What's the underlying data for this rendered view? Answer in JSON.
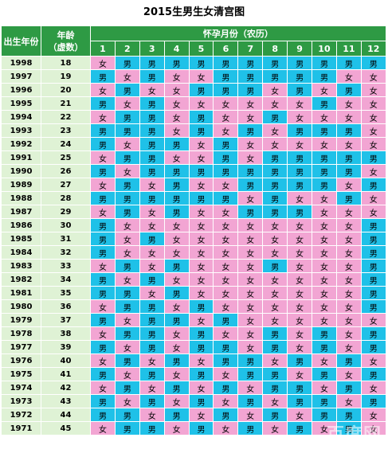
{
  "title": "2015生男生女清宫图",
  "headers": {
    "birth_year": "出生年份",
    "age_line1": "年龄",
    "age_line2": "（虚数）",
    "months_title": "怀孕月份（农历）",
    "months": [
      "1",
      "2",
      "3",
      "4",
      "5",
      "6",
      "7",
      "8",
      "9",
      "10",
      "11",
      "12"
    ]
  },
  "colors": {
    "male": "#1fc1e8",
    "female": "#f2a5d3",
    "header": "#2e9a44",
    "left_column": "#dff2d5"
  },
  "legend": {
    "male": "男",
    "female": "女"
  },
  "rows": [
    {
      "year": "1998",
      "age": "18",
      "cells": "FMMMMMMMMMMM"
    },
    {
      "year": "1997",
      "age": "19",
      "cells": "MFMFFMMMMMFF"
    },
    {
      "year": "1996",
      "age": "20",
      "cells": "FMFFMMMFMFMF"
    },
    {
      "year": "1995",
      "age": "21",
      "cells": "MFMFFFFFFMFF"
    },
    {
      "year": "1994",
      "age": "22",
      "cells": "FMMFMFFMFFFF"
    },
    {
      "year": "1993",
      "age": "23",
      "cells": "MMMFMFMFMMMF"
    },
    {
      "year": "1992",
      "age": "24",
      "cells": "MFMMFMFFFFFF"
    },
    {
      "year": "1991",
      "age": "25",
      "cells": "FMMFFMFMMMMM"
    },
    {
      "year": "1990",
      "age": "26",
      "cells": "MFMMMMMMMMMF"
    },
    {
      "year": "1989",
      "age": "27",
      "cells": "FMFMFFMMMMFM"
    },
    {
      "year": "1988",
      "age": "28",
      "cells": "MMMMMMFMFFMF"
    },
    {
      "year": "1987",
      "age": "29",
      "cells": "FMFMFFMMMFFF"
    },
    {
      "year": "1986",
      "age": "30",
      "cells": "MFFFFFFFFFFM"
    },
    {
      "year": "1985",
      "age": "31",
      "cells": "MFMFFFFFFFFM"
    },
    {
      "year": "1984",
      "age": "32",
      "cells": "MFFFFFFFFFFM"
    },
    {
      "year": "1983",
      "age": "33",
      "cells": "FMFMFFFMFFFM"
    },
    {
      "year": "1982",
      "age": "34",
      "cells": "MFMFFFFFFFFM"
    },
    {
      "year": "1981",
      "age": "35",
      "cells": "MMFMFFFFFFFM"
    },
    {
      "year": "1980",
      "age": "36",
      "cells": "FMMFMFFFFFFM"
    },
    {
      "year": "1979",
      "age": "37",
      "cells": "MFMMFMFFFFFF"
    },
    {
      "year": "1978",
      "age": "38",
      "cells": "FMMFMFFMFMFM"
    },
    {
      "year": "1977",
      "age": "39",
      "cells": "MFMFMMFMFMFM"
    },
    {
      "year": "1976",
      "age": "40",
      "cells": "FMFMFMMFMFMF"
    },
    {
      "year": "1975",
      "age": "41",
      "cells": "MFMFMFMMFMFM"
    },
    {
      "year": "1974",
      "age": "42",
      "cells": "FMFMFMFMMFMF"
    },
    {
      "year": "1973",
      "age": "43",
      "cells": "MFMFMFMFMMFM"
    },
    {
      "year": "1972",
      "age": "44",
      "cells": "MMFMFMFMFMMF"
    },
    {
      "year": "1971",
      "age": "45",
      "cells": "FMMFMFMFMFMF"
    }
  ]
}
